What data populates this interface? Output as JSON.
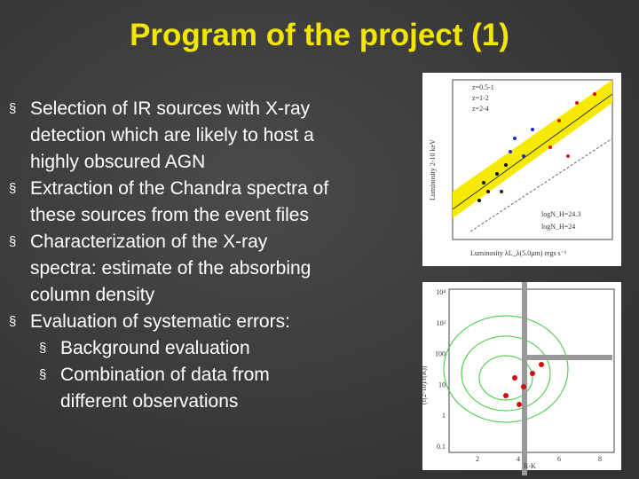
{
  "slide": {
    "title": "Program of the project (1)",
    "bullets": [
      {
        "text": "Selection of IR sources with X-ray detection which are likely to host a highly obscured AGN"
      },
      {
        "text": "Extraction of the Chandra spectra of these sources from the event files"
      },
      {
        "text": "Characterization of the X-ray spectra: estimate of the absorbing column density"
      },
      {
        "text": "Evaluation of systematic errors:",
        "sub": [
          "Background evaluation",
          "Combination of data from different observations"
        ]
      }
    ]
  },
  "figures": {
    "top": {
      "legend": [
        "z=0.5-1",
        "z=1-2",
        "z=2-4"
      ],
      "lines": [
        "logN_H=24.3",
        "logN_H=24"
      ],
      "x_label": "Luminosity λL_λ(5.0μm) ergs s⁻¹",
      "y_label": "Luminosity 2-10 keV"
    },
    "bottom": {
      "x_label": "R-K",
      "y_label": "(f(2-10)/f(R))",
      "y_ticks": [
        "10⁴",
        "10³",
        "100",
        "10",
        "1",
        "0.1"
      ],
      "x_ticks": [
        "2",
        "4",
        "6",
        "8"
      ]
    }
  }
}
